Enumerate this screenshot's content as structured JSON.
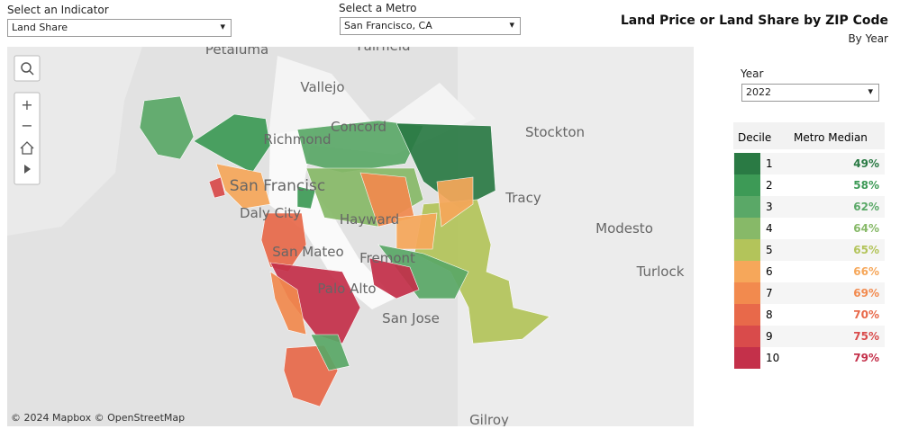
{
  "indicator_filter": {
    "label": "Select an Indicator",
    "value": "Land Share"
  },
  "metro_filter": {
    "label": "Select a Metro",
    "value": "San Francisco, CA"
  },
  "header": {
    "title": "Land Price or Land Share by ZIP Code",
    "subtitle": "By Year"
  },
  "year_filter": {
    "label": "Year",
    "value": "2022"
  },
  "legend": {
    "columns": [
      "Decile",
      "Metro Median"
    ],
    "rows": [
      {
        "decile": 1,
        "median": "49%",
        "color": "#2a7a44"
      },
      {
        "decile": 2,
        "median": "58%",
        "color": "#3d9a56"
      },
      {
        "decile": 3,
        "median": "62%",
        "color": "#5aa867"
      },
      {
        "decile": 4,
        "median": "64%",
        "color": "#87b968"
      },
      {
        "decile": 5,
        "median": "65%",
        "color": "#b3c45a"
      },
      {
        "decile": 6,
        "median": "66%",
        "color": "#f6a75a"
      },
      {
        "decile": 7,
        "median": "69%",
        "color": "#f28a4e"
      },
      {
        "decile": 8,
        "median": "70%",
        "color": "#e8694a"
      },
      {
        "decile": 9,
        "median": "75%",
        "color": "#d94b4b"
      },
      {
        "decile": 10,
        "median": "79%",
        "color": "#c4304a"
      }
    ]
  },
  "map": {
    "places": [
      "Petaluma",
      "Fairfield",
      "Vallejo",
      "Richmond",
      "Concord",
      "Stockton",
      "San Francisc",
      "Daly City",
      "Tracy",
      "Hayward",
      "Modesto",
      "San Mateo",
      "Fremont",
      "Turlock",
      "Palo Alto",
      "San Jose",
      "Gilroy"
    ],
    "attribution": "© 2024 Mapbox © OpenStreetMap"
  }
}
